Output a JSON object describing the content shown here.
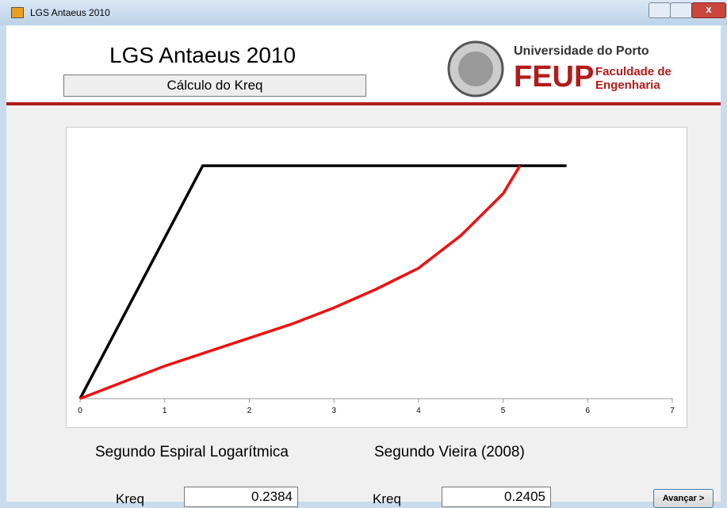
{
  "window": {
    "title": "LGS Antaeus 2010"
  },
  "header": {
    "title": "LGS Antaeus 2010",
    "subtitle": "Cálculo do Kreq",
    "university": "Universidade do Porto",
    "faculty_abbr": "FEUP",
    "faculty_line1": "Faculdade de",
    "faculty_line2": "Engenharia"
  },
  "chart_data": {
    "type": "line",
    "xlim": [
      0,
      7
    ],
    "xticks": [
      0,
      1,
      2,
      3,
      4,
      5,
      6,
      7
    ],
    "ylim": [
      0,
      1.15
    ],
    "series": [
      {
        "color": "#000000",
        "x": [
          0,
          1.45,
          5.75
        ],
        "values": [
          0,
          1,
          1
        ]
      },
      {
        "color": "#ee1111",
        "x": [
          0,
          0.5,
          1,
          1.5,
          2,
          2.5,
          3,
          3.5,
          4,
          4.5,
          5,
          5.2
        ],
        "values": [
          0,
          0.07,
          0.14,
          0.2,
          0.26,
          0.32,
          0.39,
          0.47,
          0.56,
          0.7,
          0.88,
          1
        ]
      }
    ]
  },
  "results": {
    "left_heading": "Segundo Espiral Logarítmica",
    "left_label": "Kreq",
    "left_value": "0.2384",
    "right_heading": "Segundo Vieira (2008)",
    "right_label": "Kreq",
    "right_value": "0.2405",
    "button": "Avançar >"
  }
}
